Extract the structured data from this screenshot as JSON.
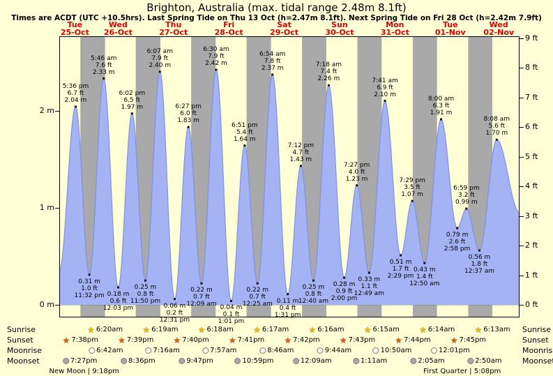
{
  "page": {
    "title": "Brighton, Australia (max. tidal range 2.48m 8.1ft)",
    "subtitle": "Times are ACDT (UTC +10.5hrs). Last Spring Tide on Thu 13 Oct (h=2.47m 8.1ft). Next Spring Tide on Fri 28 Oct (h=2.42m 7.9ft)"
  },
  "colors": {
    "background": "#ffffd6",
    "night_band": "#a9a9a9",
    "tide_fill": "#a3b3f3",
    "tide_stroke": "#7e90e8",
    "day_label": "#dd0000",
    "text": "#000000"
  },
  "days": [
    {
      "index": 0,
      "weekday": "Tue",
      "date": "25-Oct"
    },
    {
      "index": 1,
      "weekday": "Wed",
      "date": "26-Oct"
    },
    {
      "index": 2,
      "weekday": "Thu",
      "date": "27-Oct"
    },
    {
      "index": 3,
      "weekday": "Fri",
      "date": "28-Oct"
    },
    {
      "index": 4,
      "weekday": "Sat",
      "date": "29-Oct"
    },
    {
      "index": 5,
      "weekday": "Sun",
      "date": "30-Oct"
    },
    {
      "index": 6,
      "weekday": "Mon",
      "date": "31-Oct"
    },
    {
      "index": 7,
      "weekday": "Tue",
      "date": "01-Nov"
    },
    {
      "index": 8,
      "weekday": "Wed",
      "date": "02-Nov"
    }
  ],
  "axes": {
    "left_ticks": [
      {
        "label": "0 m",
        "m": 0
      },
      {
        "label": "1 m",
        "m": 1
      },
      {
        "label": "2 m",
        "m": 2
      }
    ],
    "right_ticks": [
      {
        "label": "0 ft",
        "ft": 0
      },
      {
        "label": "1 ft",
        "ft": 1
      },
      {
        "label": "2 ft",
        "ft": 2
      },
      {
        "label": "3 ft",
        "ft": 3
      },
      {
        "label": "4 ft",
        "ft": 4
      },
      {
        "label": "5 ft",
        "ft": 5
      },
      {
        "label": "6 ft",
        "ft": 6
      },
      {
        "label": "7 ft",
        "ft": 7
      },
      {
        "label": "8 ft",
        "ft": 8
      },
      {
        "label": "9 ft",
        "ft": 9
      }
    ]
  },
  "chart_data": {
    "type": "area",
    "series_name": "tide height",
    "units": {
      "primary": "m",
      "secondary": "ft"
    },
    "timeline": {
      "start": {
        "day": 0,
        "time": "10:30"
      },
      "end": {
        "day": 8,
        "time": "18:00"
      }
    },
    "y_range_m": [
      0,
      2.7432
    ],
    "edge_heights_m": {
      "start": 0.35,
      "end": 0.95
    },
    "tide_extremes": [
      {
        "day": 0,
        "time": "17:36",
        "display": "5:36 pm",
        "type": "high",
        "m": 2.04,
        "ft": 6.7
      },
      {
        "day": 0,
        "time": "23:32",
        "display": "11:32 pm",
        "type": "low",
        "m": 0.31,
        "ft": 1.0
      },
      {
        "day": 1,
        "time": "05:46",
        "display": "5:46 am",
        "type": "high",
        "m": 2.33,
        "ft": 7.6
      },
      {
        "day": 1,
        "time": "12:03",
        "display": "12:03 pm",
        "type": "low",
        "m": 0.18,
        "ft": 0.6
      },
      {
        "day": 1,
        "time": "18:02",
        "display": "6:02 pm",
        "type": "high",
        "m": 1.97,
        "ft": 6.5
      },
      {
        "day": 1,
        "time": "23:50",
        "display": "11:50 pm",
        "type": "low",
        "m": 0.25,
        "ft": 0.8
      },
      {
        "day": 2,
        "time": "06:07",
        "display": "6:07 am",
        "type": "high",
        "m": 2.4,
        "ft": 7.9
      },
      {
        "day": 2,
        "time": "12:31",
        "display": "12:31 pm",
        "type": "low",
        "m": 0.06,
        "ft": 0.2
      },
      {
        "day": 2,
        "time": "18:27",
        "display": "6:27 pm",
        "type": "high",
        "m": 1.83,
        "ft": 6.0
      },
      {
        "day": 3,
        "time": "00:09",
        "display": "12:09 am",
        "type": "low",
        "m": 0.22,
        "ft": 0.7
      },
      {
        "day": 3,
        "time": "06:30",
        "display": "6:30 am",
        "type": "high",
        "m": 2.42,
        "ft": 7.9
      },
      {
        "day": 3,
        "time": "13:01",
        "display": "1:01 pm",
        "type": "low",
        "m": 0.04,
        "ft": 0.1
      },
      {
        "day": 3,
        "time": "18:51",
        "display": "6:51 pm",
        "type": "high",
        "m": 1.64,
        "ft": 5.4
      },
      {
        "day": 4,
        "time": "00:25",
        "display": "12:25 am",
        "type": "low",
        "m": 0.22,
        "ft": 0.7
      },
      {
        "day": 4,
        "time": "06:54",
        "display": "6:54 am",
        "type": "high",
        "m": 2.37,
        "ft": 7.8
      },
      {
        "day": 4,
        "time": "13:31",
        "display": "1:31 pm",
        "type": "low",
        "m": 0.11,
        "ft": 0.4
      },
      {
        "day": 4,
        "time": "19:12",
        "display": "7:12 pm",
        "type": "high",
        "m": 1.43,
        "ft": 4.7
      },
      {
        "day": 5,
        "time": "00:40",
        "display": "12:40 am",
        "type": "low",
        "m": 0.25,
        "ft": 0.8
      },
      {
        "day": 5,
        "time": "07:18",
        "display": "7:18 am",
        "type": "high",
        "m": 2.26,
        "ft": 7.4
      },
      {
        "day": 5,
        "time": "14:00",
        "display": "2:00 pm",
        "type": "low",
        "m": 0.28,
        "ft": 0.9
      },
      {
        "day": 5,
        "time": "19:27",
        "display": "7:27 pm",
        "type": "high",
        "m": 1.23,
        "ft": 4.0
      },
      {
        "day": 6,
        "time": "00:49",
        "display": "12:49 am",
        "type": "low",
        "m": 0.33,
        "ft": 1.1
      },
      {
        "day": 6,
        "time": "07:41",
        "display": "7:41 am",
        "type": "high",
        "m": 2.1,
        "ft": 6.9
      },
      {
        "day": 6,
        "time": "14:29",
        "display": "2:29 pm",
        "type": "low",
        "m": 0.51,
        "ft": 1.7
      },
      {
        "day": 6,
        "time": "19:29",
        "display": "7:29 pm",
        "type": "high",
        "m": 1.07,
        "ft": 3.5
      },
      {
        "day": 7,
        "time": "00:50",
        "display": "12:50 am",
        "type": "low",
        "m": 0.43,
        "ft": 1.4
      },
      {
        "day": 7,
        "time": "08:00",
        "display": "8:00 am",
        "type": "high",
        "m": 1.91,
        "ft": 6.3
      },
      {
        "day": 7,
        "time": "14:58",
        "display": "2:58 pm",
        "type": "low",
        "m": 0.79,
        "ft": 2.6
      },
      {
        "day": 7,
        "time": "18:59",
        "display": "6:59 pm",
        "type": "high",
        "m": 0.99,
        "ft": 3.2
      },
      {
        "day": 8,
        "time": "00:37",
        "display": "12:37 am",
        "type": "low",
        "m": 0.56,
        "ft": 1.8
      },
      {
        "day": 8,
        "time": "08:08",
        "display": "8:08 am",
        "type": "high",
        "m": 1.7,
        "ft": 5.6
      }
    ]
  },
  "sun_moon": {
    "rows": [
      {
        "id": "sunrise",
        "label": "Sunrise",
        "icon_shape": "star",
        "icon_color": "#f0b400",
        "events": [
          {
            "day": 1,
            "time": "06:20",
            "label": "6:20am"
          },
          {
            "day": 2,
            "time": "06:19",
            "label": "6:19am"
          },
          {
            "day": 3,
            "time": "06:18",
            "label": "6:18am"
          },
          {
            "day": 4,
            "time": "06:17",
            "label": "6:17am"
          },
          {
            "day": 5,
            "time": "06:16",
            "label": "6:16am"
          },
          {
            "day": 6,
            "time": "06:15",
            "label": "6:15am"
          },
          {
            "day": 7,
            "time": "06:14",
            "label": "6:14am"
          },
          {
            "day": 8,
            "time": "06:13",
            "label": "6:13am"
          }
        ]
      },
      {
        "id": "sunset",
        "label": "Sunset",
        "icon_shape": "star",
        "icon_color": "#e05a10",
        "events": [
          {
            "day": 0,
            "time": "19:38",
            "label": "7:38pm"
          },
          {
            "day": 1,
            "time": "19:39",
            "label": "7:39pm"
          },
          {
            "day": 2,
            "time": "19:40",
            "label": "7:40pm"
          },
          {
            "day": 3,
            "time": "19:41",
            "label": "7:41pm"
          },
          {
            "day": 4,
            "time": "19:42",
            "label": "7:42pm"
          },
          {
            "day": 5,
            "time": "19:43",
            "label": "7:43pm"
          },
          {
            "day": 6,
            "time": "19:44",
            "label": "7:44pm"
          },
          {
            "day": 7,
            "time": "19:45",
            "label": "7:45pm"
          }
        ]
      },
      {
        "id": "moonrise",
        "label": "Moonrise",
        "icon_shape": "circle",
        "icon_color": "#fdfbe8",
        "events": [
          {
            "day": 1,
            "time": "06:42",
            "label": "6:42am"
          },
          {
            "day": 2,
            "time": "07:16",
            "label": "7:16am"
          },
          {
            "day": 3,
            "time": "07:57",
            "label": "7:57am"
          },
          {
            "day": 4,
            "time": "08:46",
            "label": "8:46am"
          },
          {
            "day": 5,
            "time": "09:44",
            "label": "9:44am"
          },
          {
            "day": 6,
            "time": "10:50",
            "label": "10:50am"
          },
          {
            "day": 7,
            "time": "12:01",
            "label": "12:01pm"
          }
        ]
      },
      {
        "id": "moonset",
        "label": "Moonset",
        "icon_shape": "circle",
        "icon_color": "#a8a8a8",
        "events": [
          {
            "day": 0,
            "time": "19:27",
            "label": "7:27pm"
          },
          {
            "day": 1,
            "time": "20:36",
            "label": "8:36pm"
          },
          {
            "day": 2,
            "time": "21:47",
            "label": "9:47pm"
          },
          {
            "day": 3,
            "time": "22:59",
            "label": "10:59pm"
          },
          {
            "day": 5,
            "time": "00:09",
            "label": "12:09am"
          },
          {
            "day": 6,
            "time": "01:11",
            "label": "1:11am"
          },
          {
            "day": 7,
            "time": "02:05",
            "label": "2:05am"
          },
          {
            "day": 8,
            "time": "02:50",
            "label": "2:50am"
          }
        ]
      }
    ]
  },
  "moon_phases": [
    {
      "display": "New Moon | 9:18pm",
      "day": 0,
      "time": "21:18"
    },
    {
      "display": "First Quarter | 5:08pm",
      "day": 7,
      "time": "17:08"
    }
  ]
}
